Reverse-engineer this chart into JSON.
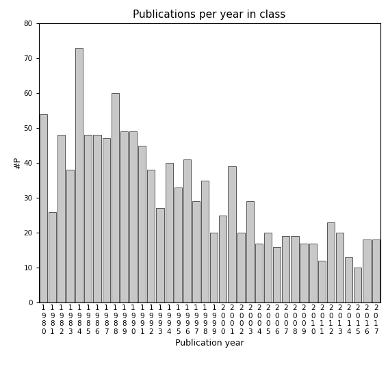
{
  "title": "Publications per year in class",
  "xlabel": "Publication year",
  "ylabel": "#P",
  "years": [
    "1980",
    "1981",
    "1982",
    "1983",
    "1984",
    "1985",
    "1986",
    "1987",
    "1988",
    "1989",
    "1990",
    "1991",
    "1992",
    "1993",
    "1994",
    "1995",
    "1996",
    "1997",
    "1998",
    "1999",
    "2000",
    "2001",
    "2002",
    "2003",
    "2004",
    "2005",
    "2006",
    "2007",
    "2008",
    "2009",
    "2010",
    "2011",
    "2012",
    "2013",
    "2014",
    "2015",
    "2016",
    "2017"
  ],
  "values": [
    54,
    26,
    48,
    38,
    73,
    48,
    48,
    47,
    60,
    49,
    49,
    45,
    38,
    27,
    40,
    33,
    41,
    29,
    35,
    20,
    25,
    39,
    20,
    29,
    17,
    20,
    16,
    19,
    19,
    17,
    17,
    12,
    23,
    20,
    13,
    10,
    18,
    18
  ],
  "bar_color": "#c8c8c8",
  "bar_edge_color": "#404040",
  "ylim": [
    0,
    80
  ],
  "yticks": [
    0,
    10,
    20,
    30,
    40,
    50,
    60,
    70,
    80
  ],
  "background_color": "#ffffff",
  "title_fontsize": 11,
  "label_fontsize": 9,
  "tick_fontsize": 7.5
}
